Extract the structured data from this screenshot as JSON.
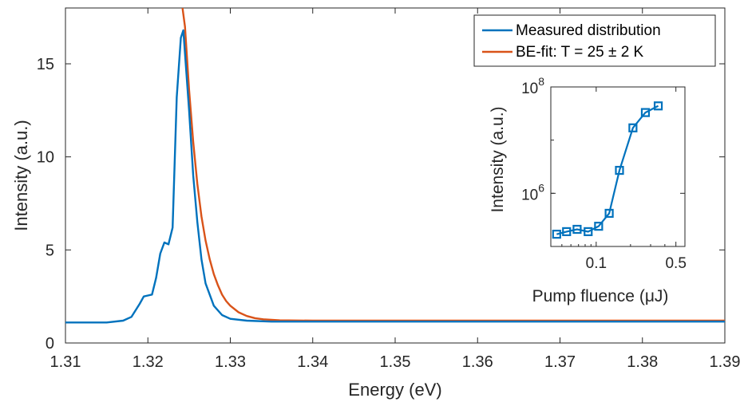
{
  "chart_data": [
    {
      "type": "line",
      "xlabel": "Energy (eV)",
      "ylabel": "Intensity (a.u.)",
      "xlim": [
        1.31,
        1.39
      ],
      "ylim": [
        0,
        18
      ],
      "xticks": [
        "1.31",
        "1.32",
        "1.33",
        "1.34",
        "1.35",
        "1.36",
        "1.37",
        "1.38",
        "1.39"
      ],
      "yticks": [
        "0",
        "5",
        "10",
        "15"
      ],
      "legend_placement": "top-right",
      "grid": false,
      "series": [
        {
          "name": "Measured distribution",
          "color": "#0072BD",
          "x": [
            1.31,
            1.315,
            1.317,
            1.318,
            1.319,
            1.3195,
            1.32,
            1.3205,
            1.321,
            1.3215,
            1.322,
            1.3225,
            1.323,
            1.3235,
            1.324,
            1.3243,
            1.325,
            1.3255,
            1.326,
            1.3265,
            1.327,
            1.328,
            1.329,
            1.33,
            1.332,
            1.335,
            1.34,
            1.35,
            1.36,
            1.37,
            1.38,
            1.39
          ],
          "y": [
            1.1,
            1.1,
            1.2,
            1.4,
            2.1,
            2.5,
            2.55,
            2.6,
            3.5,
            4.8,
            5.4,
            5.3,
            6.2,
            13.2,
            16.4,
            16.8,
            12.5,
            9.0,
            6.5,
            4.5,
            3.2,
            2.0,
            1.5,
            1.3,
            1.2,
            1.15,
            1.15,
            1.15,
            1.15,
            1.15,
            1.15,
            1.15
          ]
        },
        {
          "name": "BE-fit: T = 25 ± 2 K",
          "color": "#D95319",
          "x": [
            1.3242,
            1.3245,
            1.325,
            1.3255,
            1.326,
            1.3265,
            1.327,
            1.3275,
            1.328,
            1.3285,
            1.329,
            1.3295,
            1.33,
            1.331,
            1.332,
            1.333,
            1.334,
            1.336,
            1.34,
            1.35,
            1.36,
            1.37,
            1.38,
            1.39
          ],
          "y": [
            18,
            17.0,
            13.6,
            10.8,
            8.55,
            6.8,
            5.5,
            4.5,
            3.7,
            3.1,
            2.6,
            2.25,
            2.0,
            1.65,
            1.45,
            1.33,
            1.27,
            1.22,
            1.2,
            1.2,
            1.2,
            1.2,
            1.2,
            1.2
          ]
        }
      ]
    },
    {
      "type": "line",
      "xlabel": "Pump fluence (μJ)",
      "ylabel": "Intensity (a.u.)",
      "x_scale": "log",
      "y_scale": "log",
      "xlim": [
        0.04,
        0.6
      ],
      "ylim": [
        100000,
        100000000
      ],
      "xticks": [
        "0.1",
        "0.5"
      ],
      "yticks": [
        "10^6",
        "10^8"
      ],
      "series": [
        {
          "color": "#0072BD",
          "marker": "square",
          "x": [
            0.045,
            0.055,
            0.068,
            0.085,
            0.105,
            0.13,
            0.16,
            0.21,
            0.27,
            0.35
          ],
          "y": [
            170000,
            190000,
            210000,
            190000,
            240000,
            420000,
            2700000,
            17000000,
            33000000,
            44000000
          ]
        }
      ]
    }
  ]
}
